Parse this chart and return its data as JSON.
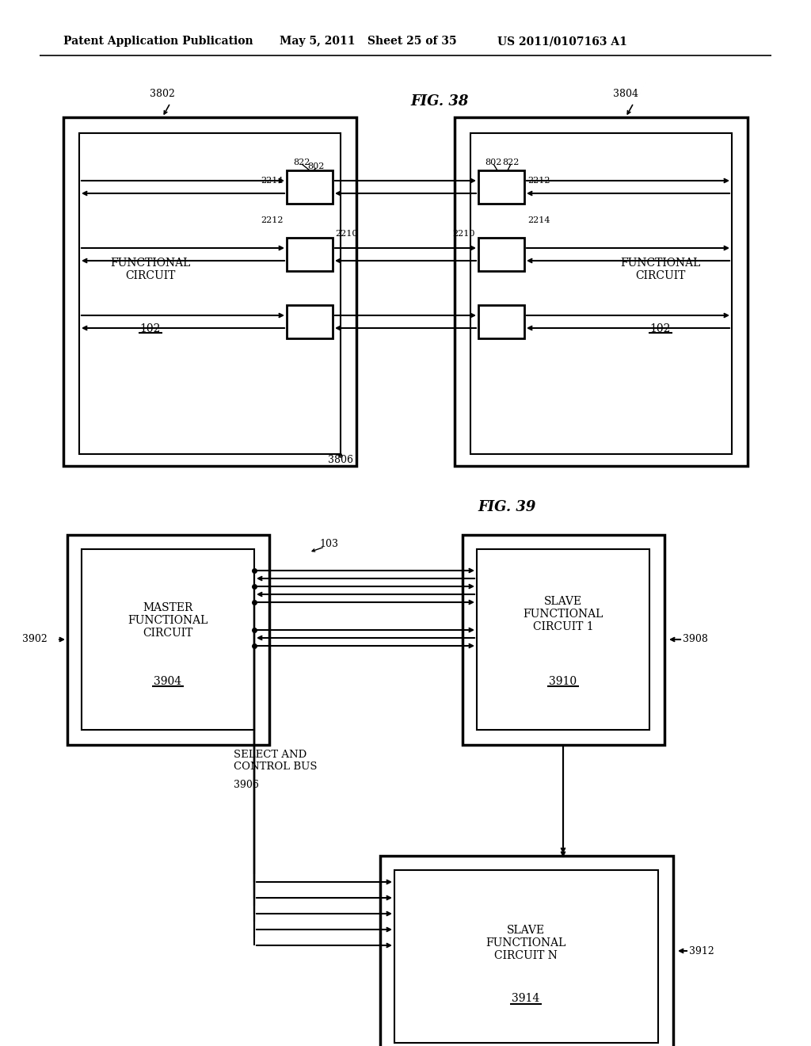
{
  "bg_color": "#ffffff",
  "header_text": "Patent Application Publication",
  "header_date": "May 5, 2011",
  "header_sheet": "Sheet 25 of 35",
  "header_patent": "US 2011/0107163 A1",
  "fig38_title": "FIG. 38",
  "fig39_title": "FIG. 39"
}
